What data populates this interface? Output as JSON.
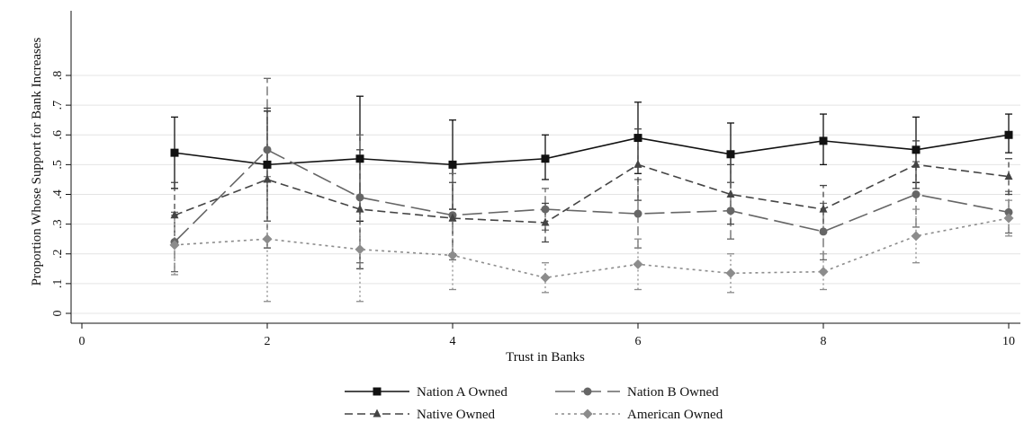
{
  "chart_data": {
    "type": "line",
    "title": "",
    "xlabel": "Trust in Banks",
    "ylabel": "Proportion Whose Support for Bank Increases",
    "xlim": [
      0,
      10
    ],
    "ylim": [
      0,
      0.8
    ],
    "xticks": [
      0,
      2,
      4,
      6,
      8,
      10
    ],
    "yticks": [
      0,
      0.1,
      0.2,
      0.3,
      0.4,
      0.5,
      0.6,
      0.7,
      0.8
    ],
    "ytick_labels": [
      "0",
      ".1",
      ".2",
      ".3",
      ".4",
      ".5",
      ".6",
      ".7",
      ".8"
    ],
    "x": [
      1,
      2,
      3,
      4,
      5,
      6,
      7,
      8,
      9,
      10
    ],
    "grid": "horizontal",
    "legend_position": "bottom",
    "series": [
      {
        "name": "Nation A Owned",
        "color": "#111111",
        "dash": "solid",
        "marker": "square",
        "values": [
          0.54,
          0.5,
          0.52,
          0.5,
          0.52,
          0.59,
          0.535,
          0.58,
          0.55,
          0.6
        ],
        "ci_low": [
          0.42,
          0.31,
          0.31,
          0.35,
          0.45,
          0.47,
          0.44,
          0.5,
          0.44,
          0.54
        ],
        "ci_high": [
          0.66,
          0.68,
          0.73,
          0.65,
          0.6,
          0.71,
          0.64,
          0.67,
          0.66,
          0.67
        ]
      },
      {
        "name": "Nation B Owned",
        "color": "#666666",
        "dash": "longdash",
        "marker": "circle",
        "values": [
          0.24,
          0.55,
          0.39,
          0.33,
          0.35,
          0.335,
          0.345,
          0.275,
          0.4,
          0.34
        ],
        "ci_low": [
          0.14,
          0.31,
          0.17,
          0.18,
          0.28,
          0.22,
          0.25,
          0.18,
          0.29,
          0.27
        ],
        "ci_high": [
          0.34,
          0.79,
          0.6,
          0.47,
          0.42,
          0.45,
          0.44,
          0.37,
          0.51,
          0.41
        ]
      },
      {
        "name": "Native Owned",
        "color": "#444444",
        "dash": "dash",
        "marker": "triangle",
        "values": [
          0.33,
          0.45,
          0.35,
          0.32,
          0.305,
          0.5,
          0.4,
          0.35,
          0.5,
          0.46
        ],
        "ci_low": [
          0.23,
          0.22,
          0.15,
          0.2,
          0.24,
          0.38,
          0.3,
          0.27,
          0.42,
          0.4
        ],
        "ci_high": [
          0.44,
          0.69,
          0.55,
          0.44,
          0.37,
          0.62,
          0.5,
          0.43,
          0.58,
          0.52
        ]
      },
      {
        "name": "American Owned",
        "color": "#8c8c8c",
        "dash": "dot",
        "marker": "diamond",
        "values": [
          0.23,
          0.25,
          0.215,
          0.195,
          0.12,
          0.165,
          0.135,
          0.14,
          0.26,
          0.32
        ],
        "ci_low": [
          0.13,
          0.04,
          0.04,
          0.08,
          0.07,
          0.08,
          0.07,
          0.08,
          0.17,
          0.26
        ],
        "ci_high": [
          0.33,
          0.46,
          0.39,
          0.31,
          0.17,
          0.25,
          0.2,
          0.2,
          0.35,
          0.38
        ]
      }
    ]
  }
}
